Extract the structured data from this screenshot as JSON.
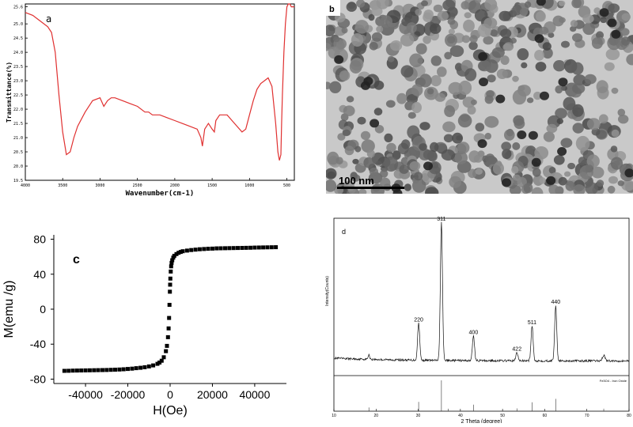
{
  "chart_data": [
    {
      "type": "line",
      "panel_label": "a",
      "xlabel": "Wavenumber(cm-1)",
      "ylabel": "Transmittance(%)",
      "xlim": [
        4000,
        400
      ],
      "ylim": [
        19.5,
        25.7
      ],
      "x_ticks": [
        "4000",
        "3500",
        "3000",
        "2500",
        "2000",
        "1500",
        "1000",
        "500"
      ],
      "y_ticks": [
        "25.6",
        "25.0",
        "24.5",
        "24.0",
        "23.5",
        "23.0",
        "22.5",
        "22.0",
        "21.5",
        "21.0",
        "20.5",
        "20.0",
        "19.5"
      ],
      "line_color": "#e03030",
      "series": [
        {
          "x": [
            4000,
            3900,
            3800,
            3700,
            3650,
            3600,
            3550,
            3500,
            3450,
            3400,
            3350,
            3300,
            3200,
            3100,
            3000,
            2950,
            2900,
            2850,
            2800,
            2700,
            2600,
            2500,
            2400,
            2350,
            2300,
            2200,
            2100,
            2000,
            1900,
            1800,
            1700,
            1650,
            1630,
            1600,
            1550,
            1500,
            1470,
            1450,
            1400,
            1300,
            1200,
            1100,
            1050,
            1000,
            950,
            900,
            850,
            800,
            750,
            700,
            650,
            620,
            600,
            580,
            570,
            560,
            540,
            520,
            500,
            480,
            460,
            440,
            420,
            400
          ],
          "y": [
            25.4,
            25.3,
            25.1,
            24.9,
            24.7,
            24.0,
            22.5,
            21.2,
            20.4,
            20.5,
            21.0,
            21.4,
            21.9,
            22.3,
            22.4,
            22.1,
            22.3,
            22.4,
            22.4,
            22.3,
            22.2,
            22.1,
            21.9,
            21.9,
            21.8,
            21.8,
            21.7,
            21.6,
            21.5,
            21.4,
            21.3,
            21.0,
            20.7,
            21.3,
            21.5,
            21.3,
            21.2,
            21.6,
            21.8,
            21.8,
            21.5,
            21.2,
            21.3,
            21.8,
            22.3,
            22.7,
            22.9,
            23.0,
            23.1,
            22.8,
            21.5,
            20.5,
            20.2,
            20.4,
            21.5,
            22.5,
            24.0,
            25.0,
            25.6,
            25.7,
            25.7,
            25.6,
            25.6,
            25.6
          ]
        }
      ]
    },
    {
      "type": "image",
      "panel_label": "b",
      "scale_bar": "100 nm"
    },
    {
      "type": "line",
      "panel_label": "c",
      "xlabel": "H(Oe)",
      "ylabel": "M(emu /g)",
      "xlim": [
        -55000,
        55000
      ],
      "ylim": [
        -85,
        85
      ],
      "x_ticks": [
        "-40000",
        "-20000",
        "0",
        "20000",
        "40000"
      ],
      "y_ticks": [
        "-80",
        "-40",
        "0",
        "40",
        "80"
      ],
      "x_tick_values": [
        -40000,
        -20000,
        0,
        20000,
        40000
      ],
      "y_tick_values": [
        -80,
        -40,
        0,
        40,
        80
      ],
      "marker": "square",
      "marker_color": "#000000",
      "series": [
        {
          "x": [
            -50000,
            -48000,
            -46000,
            -44000,
            -42000,
            -40000,
            -38000,
            -36000,
            -34000,
            -32000,
            -30000,
            -28000,
            -26000,
            -24000,
            -22000,
            -20000,
            -18000,
            -16000,
            -14000,
            -12000,
            -10000,
            -8000,
            -6000,
            -5000,
            -4000,
            -3000,
            -2000,
            -1500,
            -1000,
            -700,
            -500,
            -300,
            -100,
            0,
            100,
            300,
            500,
            700,
            1000,
            1500,
            2000,
            3000,
            4000,
            5000,
            6000,
            8000,
            10000,
            12000,
            14000,
            16000,
            18000,
            20000,
            22000,
            24000,
            26000,
            28000,
            30000,
            32000,
            34000,
            36000,
            38000,
            40000,
            42000,
            44000,
            46000,
            48000,
            50000
          ],
          "y": [
            -70.5,
            -70.4,
            -70.3,
            -70.2,
            -70.1,
            -70.0,
            -69.9,
            -69.8,
            -69.7,
            -69.6,
            -69.5,
            -69.4,
            -69.2,
            -69.0,
            -68.7,
            -68.4,
            -68.0,
            -67.5,
            -67.0,
            -66.4,
            -65.5,
            -64.3,
            -62.5,
            -61.0,
            -59.0,
            -55.0,
            -48.0,
            -42.0,
            -32.0,
            -22.0,
            -10.0,
            5.0,
            20.0,
            28.0,
            35.0,
            43.0,
            49.0,
            53.0,
            56.0,
            59.0,
            61.0,
            63.0,
            64.5,
            65.5,
            66.3,
            67.0,
            67.6,
            68.1,
            68.5,
            68.8,
            69.1,
            69.3,
            69.5,
            69.6,
            69.7,
            69.8,
            69.9,
            70.0,
            70.1,
            70.2,
            70.3,
            70.4,
            70.5,
            70.6,
            70.7,
            70.8,
            70.9
          ]
        }
      ]
    },
    {
      "type": "line",
      "panel_label": "d",
      "xlabel": "2 Theta (degree)",
      "ylabel": "Intensity(Counts)",
      "xlim": [
        10,
        80
      ],
      "x_ticks": [
        "10",
        "20",
        "30",
        "40",
        "50",
        "60",
        "70",
        "80"
      ],
      "x_tick_values": [
        10,
        20,
        30,
        40,
        50,
        60,
        70,
        80
      ],
      "ylim": [
        0,
        100
      ],
      "reference_label": "Fe3O4 - Iron Oxide",
      "peaks": [
        {
          "label": "220",
          "x": 30.1,
          "y": 27
        },
        {
          "label": "311",
          "x": 35.5,
          "y": 100
        },
        {
          "label": "400",
          "x": 43.1,
          "y": 18
        },
        {
          "label": "422",
          "x": 53.4,
          "y": 6
        },
        {
          "label": "511",
          "x": 57.0,
          "y": 25
        },
        {
          "label": "440",
          "x": 62.6,
          "y": 40
        }
      ],
      "reference_lines": [
        {
          "x": 18.3,
          "h": 0.12
        },
        {
          "x": 30.1,
          "h": 0.3
        },
        {
          "x": 35.5,
          "h": 1.0
        },
        {
          "x": 37.1,
          "h": 0.08
        },
        {
          "x": 43.1,
          "h": 0.21
        },
        {
          "x": 53.4,
          "h": 0.09
        },
        {
          "x": 57.0,
          "h": 0.29
        },
        {
          "x": 62.6,
          "h": 0.4
        },
        {
          "x": 74.0,
          "h": 0.08
        }
      ]
    }
  ]
}
